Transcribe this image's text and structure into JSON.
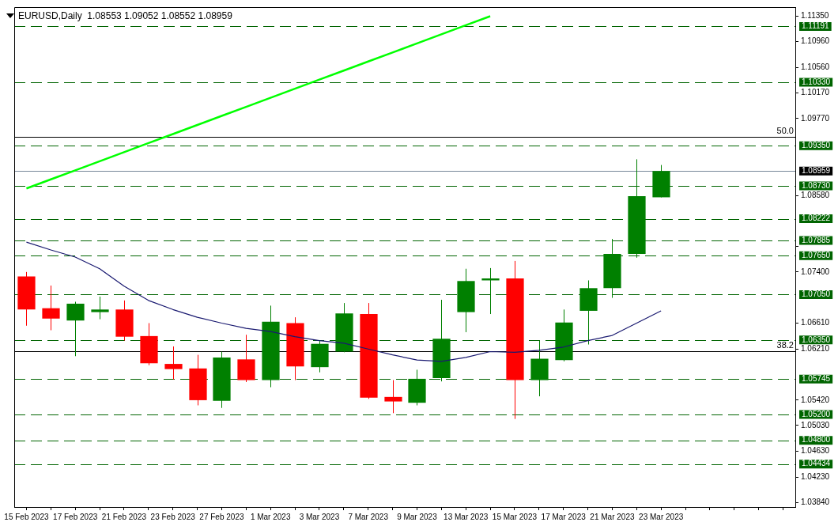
{
  "chart_data": {
    "type": "candlestick",
    "title": "EURUSD,Daily  1.08553 1.09052 1.08552 1.08959",
    "categories": [
      "15 Feb 2023",
      null,
      "17 Feb 2023",
      null,
      "21 Feb 2023",
      null,
      "23 Feb 2023",
      null,
      "27 Feb 2023",
      null,
      "1 Mar 2023",
      null,
      "3 Mar 2023",
      null,
      "7 Mar 2023",
      null,
      "9 Mar 2023",
      null,
      "13 Mar 2023",
      null,
      "15 Mar 2023",
      null,
      "17 Mar 2023",
      null,
      "21 Mar 2023",
      null,
      "23 Mar 2023",
      null,
      null,
      null,
      null,
      null
    ],
    "series": [
      {
        "type": "line",
        "color": "#00ff00",
        "values": [
          1.0869,
          1.0883,
          1.0897,
          1.0911,
          1.0925,
          1.0939,
          1.0953,
          1.0967,
          1.0981,
          1.0995,
          1.1009,
          1.1023,
          1.1037,
          1.1051,
          1.1065,
          1.1079,
          1.1093,
          1.1107,
          1.1121,
          1.1135,
          null,
          null,
          null,
          null,
          null,
          null,
          null,
          null,
          null,
          null,
          null,
          null
        ]
      },
      {
        "type": "line",
        "color": "#191970",
        "values": [
          1.0786,
          1.0774,
          1.0763,
          1.0745,
          1.0718,
          1.0696,
          1.0682,
          1.067,
          1.0661,
          1.0653,
          1.0648,
          1.064,
          1.0634,
          1.063,
          1.0621,
          1.0612,
          1.0604,
          1.0602,
          1.0608,
          1.0617,
          1.0616,
          1.0619,
          1.0624,
          1.0634,
          1.0642,
          1.0661,
          1.068,
          null,
          null,
          null,
          null,
          null
        ]
      },
      {
        "ohlc": [
          [
            1.0733,
            1.074,
            1.0657,
            1.0682
          ],
          [
            1.0684,
            1.0719,
            1.065,
            1.0668
          ],
          [
            1.0665,
            1.0694,
            1.061,
            1.0691
          ],
          [
            1.0678,
            1.0702,
            1.0667,
            1.0682
          ],
          [
            1.0682,
            1.0696,
            1.0634,
            1.064
          ],
          [
            1.0641,
            1.0661,
            1.0596,
            1.0599
          ],
          [
            1.0598,
            1.0625,
            1.0574,
            1.059
          ],
          [
            1.0591,
            1.0612,
            1.0534,
            1.0542
          ],
          [
            1.0541,
            1.0617,
            1.053,
            1.0608
          ],
          [
            1.0605,
            1.0643,
            1.057,
            1.0573
          ],
          [
            1.0573,
            1.0688,
            1.0562,
            1.0663
          ],
          [
            1.0661,
            1.067,
            1.0573,
            1.0594
          ],
          [
            1.0593,
            1.0634,
            1.0585,
            1.0629
          ],
          [
            1.0617,
            1.0692,
            1.0616,
            1.0676
          ],
          [
            1.0675,
            1.0692,
            1.0544,
            1.0546
          ],
          [
            1.0547,
            1.0573,
            1.0522,
            1.054
          ],
          [
            1.0538,
            1.0589,
            1.0534,
            1.0575
          ],
          [
            1.0576,
            1.0697,
            1.0571,
            1.0637
          ],
          [
            1.0678,
            1.0745,
            1.0647,
            1.0726
          ],
          [
            1.0727,
            1.0746,
            1.0675,
            1.073
          ],
          [
            1.073,
            1.0757,
            1.0513,
            1.0573
          ],
          [
            1.0573,
            1.0634,
            1.0548,
            1.0606
          ],
          [
            1.0604,
            1.0682,
            1.0602,
            1.0662
          ],
          [
            1.068,
            1.0727,
            1.0628,
            1.0715
          ],
          [
            1.0715,
            1.0791,
            1.07,
            1.0768
          ],
          [
            1.0768,
            1.0914,
            1.0762,
            1.0857
          ],
          [
            1.08553,
            1.09052,
            1.08552,
            1.08959
          ],
          null,
          null,
          null,
          null,
          null
        ],
        "colors": [
          "#ff0000",
          "#ff0000",
          "#008000",
          "#008000",
          "#ff0000",
          "#ff0000",
          "#ff0000",
          "#ff0000",
          "#008000",
          "#ff0000",
          "#008000",
          "#ff0000",
          "#008000",
          "#008000",
          "#ff0000",
          "#ff0000",
          "#008000",
          "#008000",
          "#008000",
          "#008000",
          "#ff0000",
          "#008000",
          "#008000",
          "#008000",
          "#008000",
          "#008000",
          "#008000",
          null,
          null,
          null,
          null,
          null
        ]
      }
    ],
    "ylim": [
      1.0377,
      1.1149
    ],
    "yticks": [
      {
        "value": 1.1135,
        "label": "1.11350"
      },
      {
        "value": 1.1096,
        "label": "1.10960"
      },
      {
        "value": 1.1056,
        "label": "1.10560"
      },
      {
        "value": 1.1017,
        "label": "1.10170"
      },
      {
        "value": 1.0977,
        "label": "1.09770"
      },
      {
        "value": 1.0858,
        "label": "1.08580"
      },
      {
        "value": 1.0779,
        "label": null
      },
      {
        "value": 1.074,
        "label": "1.07400"
      },
      {
        "value": 1.0661,
        "label": "1.06610"
      },
      {
        "value": 1.0621,
        "label": "1.06210"
      },
      {
        "value": 1.0542,
        "label": "1.05420"
      },
      {
        "value": 1.0503,
        "label": "1.05030"
      },
      {
        "value": 1.0463,
        "label": "1.04630"
      },
      {
        "value": 1.0423,
        "label": "1.04230"
      },
      {
        "value": 1.0384,
        "label": "1.03840"
      }
    ],
    "ref_lines": [
      {
        "axis": "y",
        "value": 1.11191,
        "label": "1.11191",
        "color": "#006400",
        "line_style": "dashed"
      },
      {
        "axis": "y",
        "value": 1.1033,
        "label": "1.10330",
        "color": "#006400",
        "line_style": "dashed"
      },
      {
        "axis": "y",
        "value": 1.0935,
        "label": "1.09350",
        "color": "#006400",
        "line_style": "dashed"
      },
      {
        "axis": "y",
        "value": 1.0873,
        "label": "1.08730",
        "color": "#006400",
        "line_style": "dashed"
      },
      {
        "axis": "y",
        "value": 1.08222,
        "label": "1.08222",
        "color": "#006400",
        "line_style": "dashed"
      },
      {
        "axis": "y",
        "value": 1.07885,
        "label": "1.07885",
        "color": "#006400",
        "line_style": "dashed"
      },
      {
        "axis": "y",
        "value": 1.0765,
        "label": "1.07650",
        "color": "#006400",
        "line_style": "dashed"
      },
      {
        "axis": "y",
        "value": 1.0705,
        "label": "1.07050",
        "color": "#006400",
        "line_style": "dashed"
      },
      {
        "axis": "y",
        "value": 1.0635,
        "label": "1.06350",
        "color": "#006400",
        "line_style": "dashed"
      },
      {
        "axis": "y",
        "value": 1.05745,
        "label": "1.05745",
        "color": "#006400",
        "line_style": "dashed"
      },
      {
        "axis": "y",
        "value": 1.052,
        "label": "1.05200",
        "color": "#006400",
        "line_style": "dashed"
      },
      {
        "axis": "y",
        "value": 1.048,
        "label": "1.04800",
        "color": "#006400",
        "line_style": "dashed"
      },
      {
        "axis": "y",
        "value": 1.04434,
        "label": "1.04434",
        "color": "#006400",
        "line_style": "dashed"
      },
      {
        "axis": "y",
        "value": 1.08959,
        "label": "1.08959",
        "color": "#778899",
        "line_style": "solid"
      },
      {
        "axis": "y",
        "value": 1.0949,
        "color": "#000000",
        "line_style": "solid"
      },
      {
        "axis": "y",
        "value": 1.0618,
        "color": "#000000",
        "line_style": "solid"
      }
    ],
    "annotations": [
      {
        "text": "50.0",
        "y": 1.0949
      },
      {
        "text": "38.2",
        "y": 1.0618
      }
    ],
    "marker": "none",
    "legend": false,
    "grid": false
  }
}
